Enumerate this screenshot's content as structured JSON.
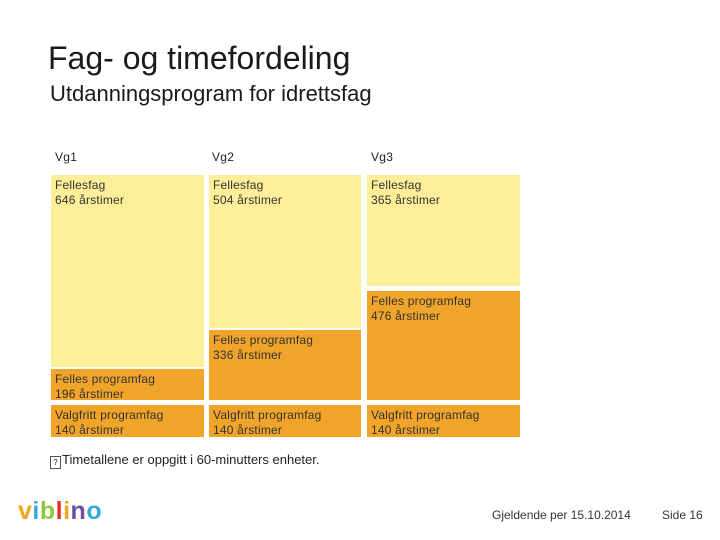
{
  "header": {
    "title": "Fag- og timefordeling",
    "subtitle": "Utdanningsprogram for idrettsfag"
  },
  "columns": [
    "Vg1",
    "Vg2",
    "Vg3"
  ],
  "blocks": {
    "vg1": {
      "fellesfag": {
        "label": "Fellesfag",
        "hours": "646 årstimer"
      },
      "felles_programfag": {
        "label": "Felles programfag",
        "hours": "196 årstimer"
      },
      "valgfritt_programfag": {
        "label": "Valgfritt programfag",
        "hours": "140 årstimer"
      }
    },
    "vg2": {
      "fellesfag": {
        "label": "Fellesfag",
        "hours": "504 årstimer"
      },
      "felles_programfag": {
        "label": "Felles programfag",
        "hours": "336 årstimer"
      },
      "valgfritt_programfag": {
        "label": "Valgfritt programfag",
        "hours": "140 årstimer"
      }
    },
    "vg3": {
      "fellesfag": {
        "label": "Fellesfag",
        "hours": "365 årstimer"
      },
      "felles_programfag": {
        "label": "Felles programfag",
        "hours": "476 årstimer"
      },
      "valgfritt_programfag": {
        "label": "Valgfritt programfag",
        "hours": "140 årstimer"
      }
    }
  },
  "note": "Timetallene er oppgitt i 60-minutters enheter.",
  "colors": {
    "fellesfag": "#fdef99",
    "programfag": "#f0a52a",
    "logo_v": "#f2a51c",
    "logo_i": "#38a9d6",
    "logo_b": "#8dc63f",
    "logo_l": "#e5302b",
    "logo_n": "#6a4e9c",
    "logo_o": "#38a9d6"
  },
  "logo": {
    "letters": [
      "v",
      "i",
      "b",
      "l",
      "i",
      "n",
      "o"
    ]
  },
  "footer": {
    "date": "Gjeldende per 15.10.2014",
    "page": "Side 16"
  }
}
